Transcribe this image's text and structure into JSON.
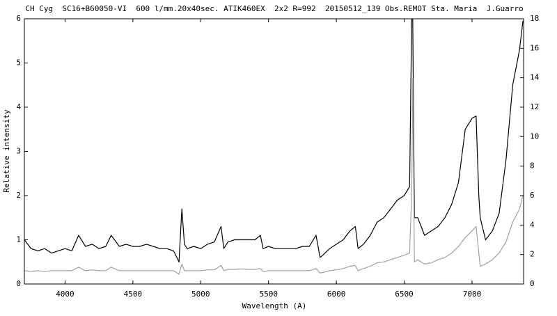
{
  "chart_data": {
    "type": "line",
    "title": "CH Cyg  SC16+B60050-VI  600 l/mm.20x40sec. ATIK460EX  2x2 R=992  20150512_139 Obs.REMOT Sta. Maria  J.Guarro",
    "xlabel": "Wavelength (A)",
    "ylabel": "Relative intensity",
    "xlim": [
      3700,
      7380
    ],
    "xticks": [
      4000,
      4500,
      5000,
      5500,
      6000,
      6500,
      7000
    ],
    "ylim": [
      0,
      6
    ],
    "yticks": [
      0,
      1,
      2,
      3,
      4,
      5,
      6
    ],
    "y2lim": [
      0,
      18
    ],
    "y2ticks": [
      0,
      2,
      4,
      6,
      8,
      10,
      12,
      14,
      16,
      18
    ],
    "x": [
      3700,
      3750,
      3800,
      3850,
      3900,
      3950,
      4000,
      4050,
      4100,
      4150,
      4200,
      4250,
      4300,
      4340,
      4400,
      4450,
      4500,
      4550,
      4600,
      4650,
      4700,
      4750,
      4800,
      4840,
      4861,
      4880,
      4900,
      4950,
      5000,
      5050,
      5100,
      5150,
      5170,
      5200,
      5250,
      5300,
      5350,
      5400,
      5440,
      5460,
      5500,
      5550,
      5600,
      5650,
      5700,
      5750,
      5800,
      5850,
      5880,
      5900,
      5950,
      6000,
      6050,
      6100,
      6140,
      6160,
      6200,
      6250,
      6300,
      6350,
      6400,
      6450,
      6500,
      6540,
      6555,
      6563,
      6575,
      6600,
      6650,
      6700,
      6750,
      6800,
      6850,
      6900,
      6950,
      7000,
      7030,
      7050,
      7060,
      7100,
      7150,
      7200,
      7250,
      7300,
      7350,
      7375
    ],
    "series": [
      {
        "color": "#000000",
        "values": [
          1.0,
          0.8,
          0.75,
          0.8,
          0.7,
          0.75,
          0.8,
          0.75,
          1.1,
          0.85,
          0.9,
          0.8,
          0.85,
          1.1,
          0.85,
          0.9,
          0.85,
          0.85,
          0.9,
          0.85,
          0.8,
          0.8,
          0.75,
          0.5,
          1.7,
          0.9,
          0.8,
          0.85,
          0.8,
          0.9,
          0.95,
          1.3,
          0.8,
          0.95,
          1.0,
          1.0,
          1.0,
          1.0,
          1.1,
          0.8,
          0.85,
          0.8,
          0.8,
          0.8,
          0.8,
          0.85,
          0.85,
          1.1,
          0.6,
          0.65,
          0.8,
          0.9,
          1.0,
          1.2,
          1.3,
          0.8,
          0.9,
          1.1,
          1.4,
          1.5,
          1.7,
          1.9,
          2.0,
          2.2,
          6.0,
          6.0,
          1.5,
          1.5,
          1.1,
          1.2,
          1.3,
          1.5,
          1.8,
          2.3,
          3.5,
          3.75,
          3.8,
          2.0,
          1.5,
          1.0,
          1.2,
          1.6,
          2.8,
          4.5,
          5.3,
          5.95
        ]
      },
      {
        "color": "#a0a0a0",
        "values": [
          0.3,
          0.28,
          0.3,
          0.28,
          0.3,
          0.3,
          0.3,
          0.3,
          0.38,
          0.3,
          0.32,
          0.3,
          0.3,
          0.38,
          0.3,
          0.3,
          0.3,
          0.3,
          0.3,
          0.3,
          0.3,
          0.3,
          0.3,
          0.22,
          0.45,
          0.3,
          0.3,
          0.3,
          0.3,
          0.32,
          0.32,
          0.42,
          0.3,
          0.33,
          0.33,
          0.34,
          0.33,
          0.33,
          0.35,
          0.28,
          0.3,
          0.3,
          0.3,
          0.3,
          0.3,
          0.3,
          0.3,
          0.35,
          0.25,
          0.26,
          0.3,
          0.32,
          0.35,
          0.4,
          0.42,
          0.3,
          0.35,
          0.4,
          0.48,
          0.5,
          0.55,
          0.6,
          0.65,
          0.7,
          2.0,
          4.65,
          0.5,
          0.55,
          0.45,
          0.48,
          0.55,
          0.6,
          0.7,
          0.85,
          1.05,
          1.2,
          1.3,
          0.7,
          0.4,
          0.45,
          0.55,
          0.7,
          0.95,
          1.4,
          1.7,
          2.0
        ]
      }
    ]
  }
}
